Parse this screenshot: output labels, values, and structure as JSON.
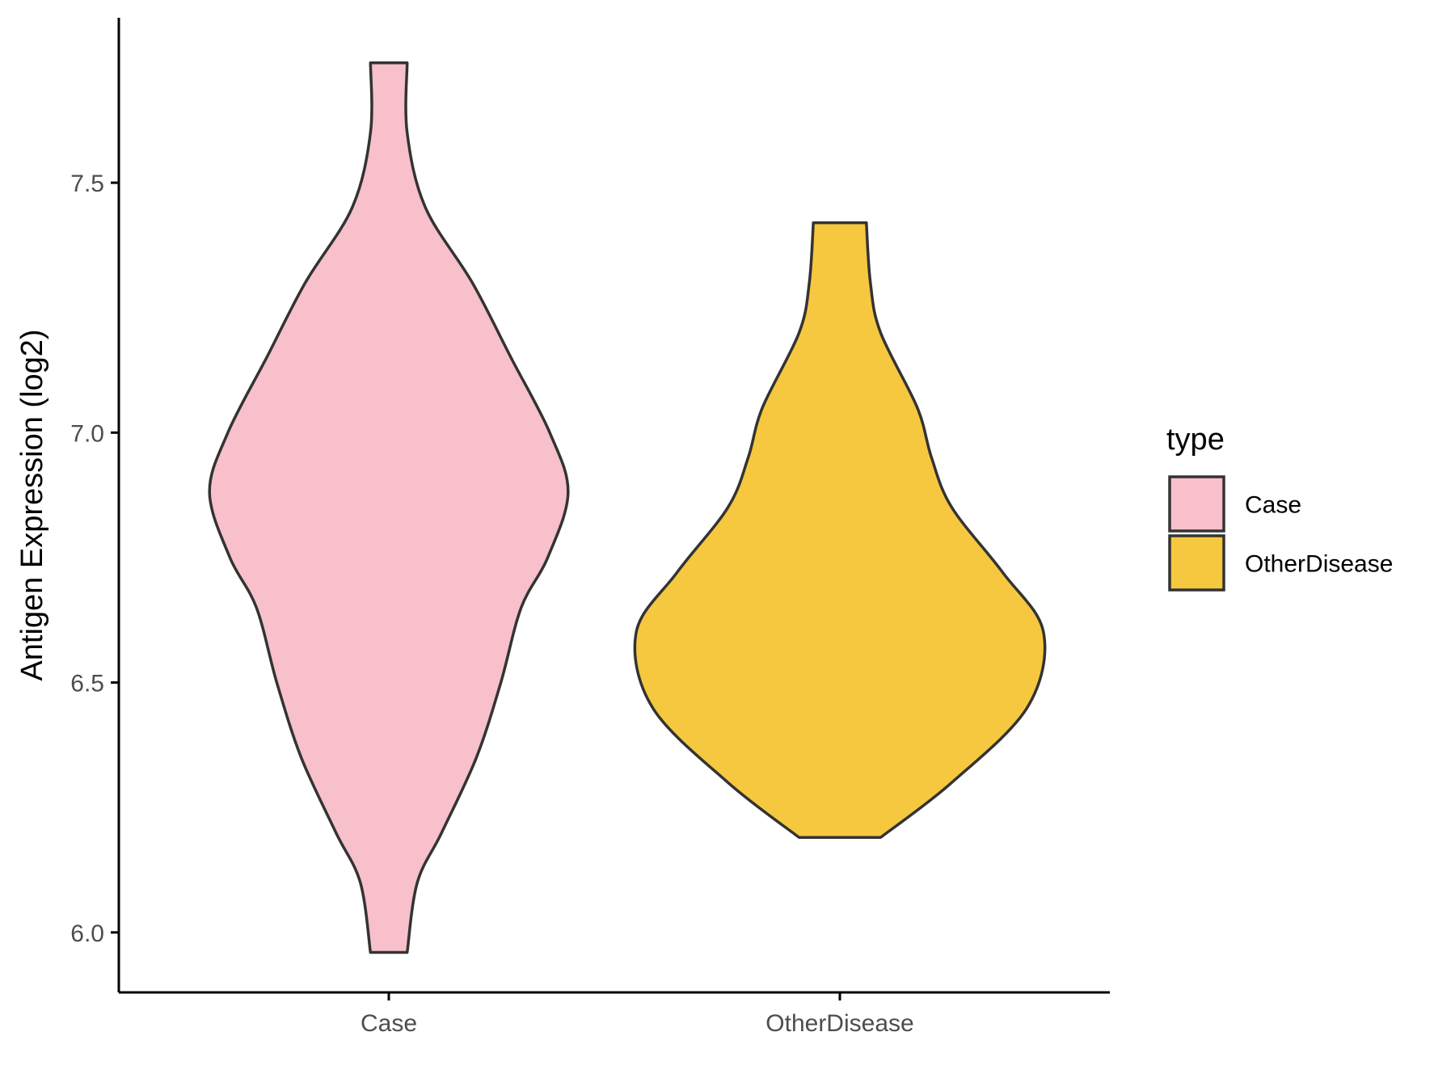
{
  "chart_data": {
    "type": "violin",
    "title": "",
    "xlabel": "",
    "ylabel": "Antigen Expression (log2)",
    "ylim": [
      5.88,
      7.83
    ],
    "yticks": [
      "6.0",
      "6.5",
      "7.0",
      "7.5"
    ],
    "ytick_values": [
      6.0,
      6.5,
      7.0,
      7.5
    ],
    "categories": [
      "Case",
      "OtherDisease"
    ],
    "grid": false,
    "legend": {
      "title": "type",
      "position": "right",
      "entries": [
        "Case",
        "OtherDisease"
      ]
    },
    "series": [
      {
        "name": "Case",
        "color": "#F7C0CB",
        "min": 5.96,
        "max": 7.74,
        "density": [
          [
            5.96,
            0.09
          ],
          [
            6.1,
            0.14
          ],
          [
            6.2,
            0.26
          ],
          [
            6.35,
            0.43
          ],
          [
            6.5,
            0.55
          ],
          [
            6.65,
            0.65
          ],
          [
            6.75,
            0.78
          ],
          [
            6.88,
            0.88
          ],
          [
            7.0,
            0.79
          ],
          [
            7.15,
            0.6
          ],
          [
            7.3,
            0.41
          ],
          [
            7.45,
            0.18
          ],
          [
            7.6,
            0.09
          ],
          [
            7.74,
            0.09
          ]
        ]
      },
      {
        "name": "OtherDisease",
        "color": "#F5C83F",
        "min": 6.19,
        "max": 7.42,
        "density": [
          [
            6.19,
            0.2
          ],
          [
            6.3,
            0.55
          ],
          [
            6.45,
            0.92
          ],
          [
            6.6,
            1.0
          ],
          [
            6.72,
            0.8
          ],
          [
            6.85,
            0.55
          ],
          [
            6.95,
            0.45
          ],
          [
            7.05,
            0.38
          ],
          [
            7.2,
            0.2
          ],
          [
            7.3,
            0.15
          ],
          [
            7.42,
            0.13
          ]
        ]
      }
    ]
  },
  "stroke_color": "#333333",
  "axis_color": "#000000"
}
